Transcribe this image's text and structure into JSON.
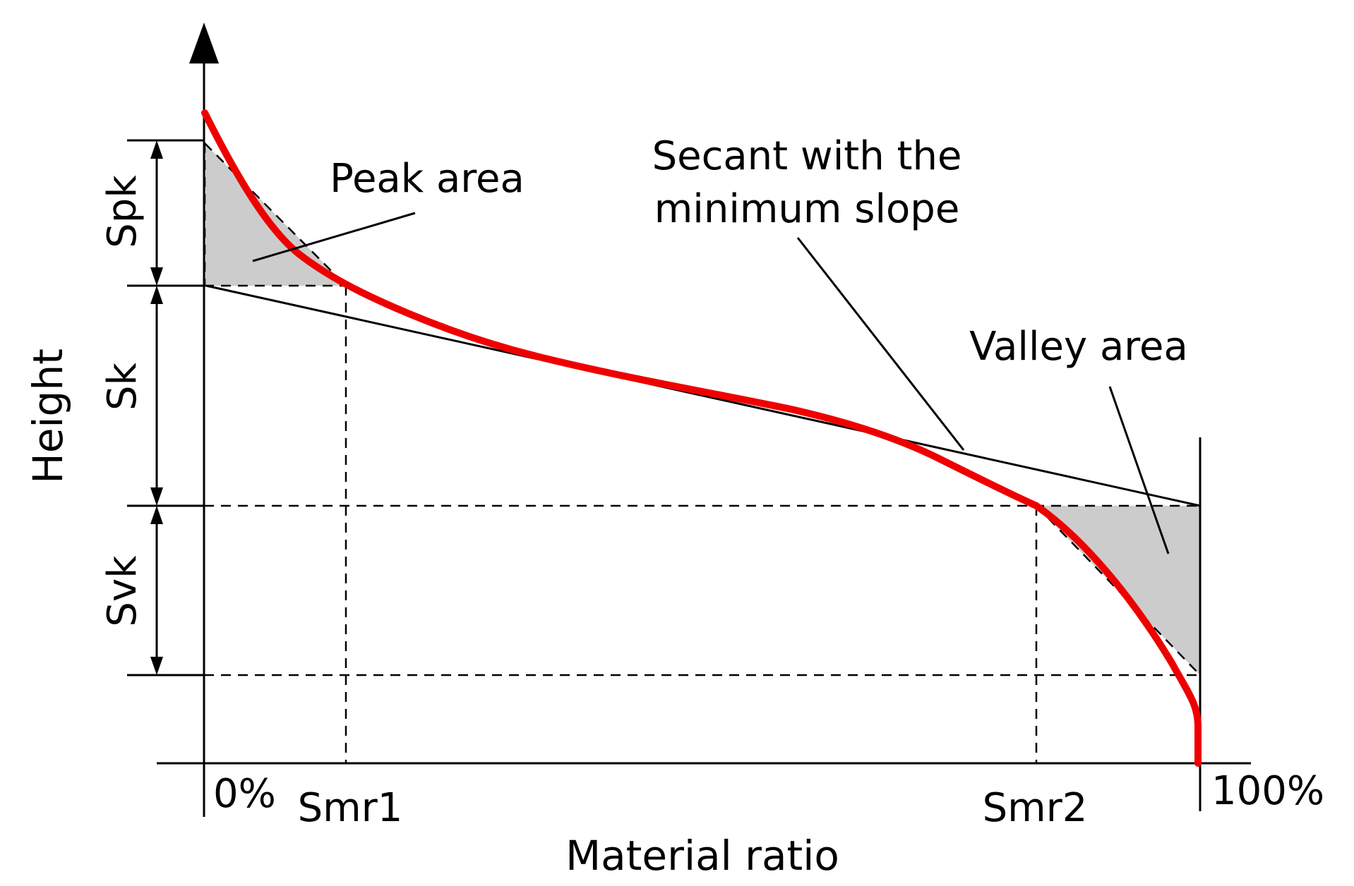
{
  "labels": {
    "y_axis": "Height",
    "x_axis": "Material ratio",
    "spk": "Spk",
    "sk": "Sk",
    "svk": "Svk",
    "zero_percent": "0%",
    "hundred_percent": "100%",
    "smr1": "Smr1",
    "smr2": "Smr2",
    "peak_area": "Peak area",
    "secant_line1": "Secant with the",
    "secant_line2": "minimum slope",
    "valley_area": "Valley area"
  },
  "colors": {
    "curve": "#ee0000",
    "area_fill": "#cccccc",
    "lines": "#000000"
  }
}
